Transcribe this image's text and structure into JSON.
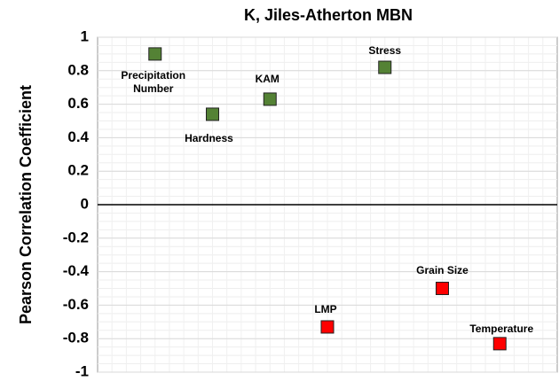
{
  "chart_data": {
    "type": "scatter",
    "title": "K, Jiles-Atherton MBN",
    "y_label": "Pearson Correlation Coefficient",
    "x": [
      1,
      2,
      3,
      4,
      5,
      6,
      7
    ],
    "labels": [
      "Precipitation Number",
      "Hardness",
      "KAM",
      "LMP",
      "Stress",
      "Grain Size",
      "Temperature"
    ],
    "values": [
      0.9,
      0.54,
      0.63,
      -0.73,
      0.82,
      -0.5,
      -0.83
    ],
    "colors": [
      "#548235",
      "#548235",
      "#548235",
      "#ff0000",
      "#548235",
      "#ff0000",
      "#ff0000"
    ],
    "xlim": [
      0,
      8
    ],
    "ylim": [
      -1,
      1
    ],
    "yticks": [
      -1,
      -0.8,
      -0.6,
      -0.4,
      -0.2,
      0,
      0.2,
      0.4,
      0.6,
      0.8,
      1
    ],
    "grid": true
  }
}
